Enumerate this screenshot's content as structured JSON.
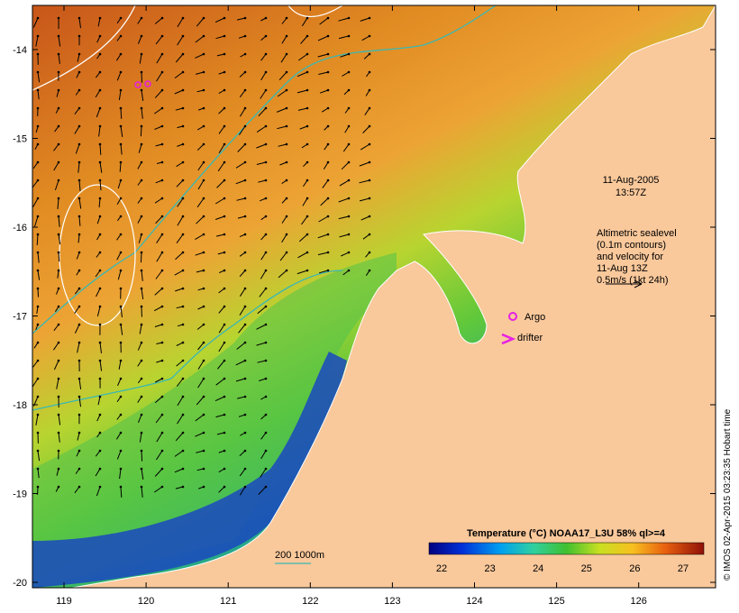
{
  "map": {
    "lat_ticks": [
      "-14",
      "-15",
      "-16",
      "-17",
      "-18",
      "-19",
      "-20"
    ],
    "lon_ticks": [
      "119",
      "120",
      "121",
      "122",
      "123",
      "124",
      "125",
      "126"
    ],
    "timestamp": {
      "date": "11-Aug-2005",
      "time": "13:57Z"
    },
    "info_lines": [
      "Altimetric sealevel",
      "(0.1m contours)",
      "and velocity for",
      "11-Aug 13Z",
      "0.5m/s (1kt 24h)"
    ],
    "legend": {
      "argo": "Argo",
      "drifter": "drifter",
      "scale": "200  1000m"
    },
    "colorbar": {
      "title": "Temperature (°C) NOAA17_L3U 58% ql>=4",
      "ticks": [
        "22",
        "23",
        "24",
        "25",
        "26",
        "27"
      ]
    },
    "credit": "© IMOS 02-Apr-2015 03:23:35 Hobart time",
    "colors": {
      "land": "#f9c89b",
      "warm": "#d9661a",
      "argo": "#e61ee6",
      "bathy_line": "#3ab8b3",
      "contour": "#ffffff"
    }
  }
}
